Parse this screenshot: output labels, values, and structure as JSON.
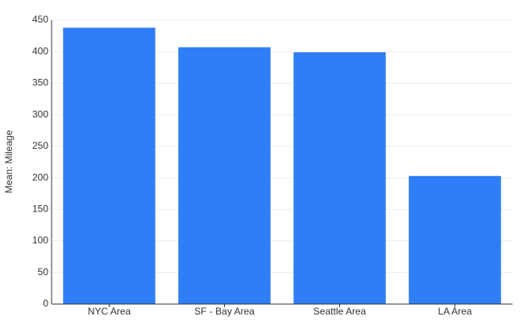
{
  "chart_data": {
    "type": "bar",
    "y_label": "Mean: Mileage",
    "categories": [
      "NYC Area",
      "SF - Bay Area",
      "Seattle Area",
      "LA Area"
    ],
    "values": [
      438,
      407,
      399,
      203
    ],
    "color": "#2f7ef7",
    "ylim": [
      0,
      450
    ],
    "yticks": [
      0,
      50,
      100,
      150,
      200,
      250,
      300,
      350,
      400,
      450
    ],
    "grid": true
  }
}
